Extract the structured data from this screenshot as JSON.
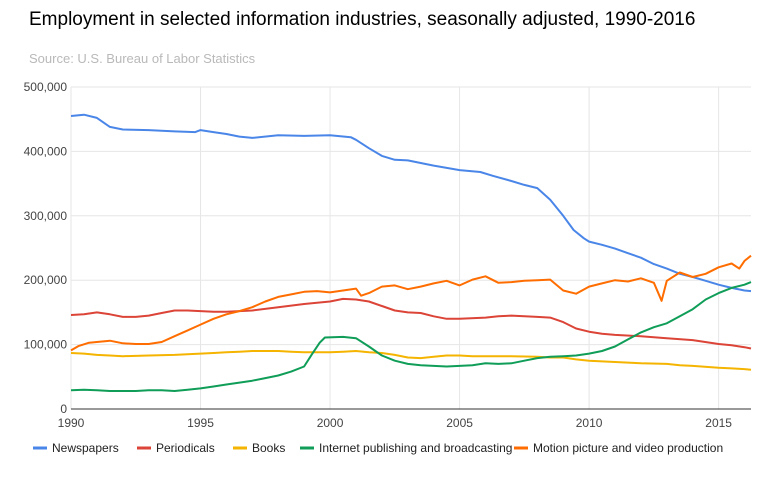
{
  "title": "Employment in selected information industries, seasonally adjusted, 1990-2016",
  "source": "Source: U.S. Bureau of Labor Statistics",
  "chart_data": {
    "type": "line",
    "title": "Employment in selected information industries, seasonally adjusted, 1990-2016",
    "subtitle": "Source: U.S. Bureau of Labor Statistics",
    "xlabel": "",
    "ylabel": "",
    "xlim": [
      1990,
      2016.25
    ],
    "ylim": [
      0,
      500000
    ],
    "x_ticks": [
      1990,
      1995,
      2000,
      2005,
      2010,
      2015
    ],
    "y_ticks": [
      0,
      100000,
      200000,
      300000,
      400000,
      500000
    ],
    "y_tick_labels": [
      "0",
      "100,000",
      "200,000",
      "300,000",
      "400,000",
      "500,000"
    ],
    "grid": true,
    "legend_position": "bottom",
    "series": [
      {
        "name": "Newspapers",
        "color": "#4a86e8",
        "points": [
          [
            1990,
            455000
          ],
          [
            1990.5,
            457000
          ],
          [
            1991,
            452000
          ],
          [
            1991.5,
            438000
          ],
          [
            1992,
            434000
          ],
          [
            1993,
            433000
          ],
          [
            1994,
            431000
          ],
          [
            1994.8,
            430000
          ],
          [
            1995,
            433000
          ],
          [
            1995.5,
            430000
          ],
          [
            1996,
            427000
          ],
          [
            1996.5,
            423000
          ],
          [
            1997,
            421000
          ],
          [
            1998,
            425000
          ],
          [
            1999,
            424000
          ],
          [
            2000,
            425000
          ],
          [
            2000.8,
            422000
          ],
          [
            2001,
            418000
          ],
          [
            2001.5,
            405000
          ],
          [
            2002,
            393000
          ],
          [
            2002.5,
            387000
          ],
          [
            2003,
            386000
          ],
          [
            2003.5,
            382000
          ],
          [
            2004,
            378000
          ],
          [
            2005,
            371000
          ],
          [
            2005.8,
            368000
          ],
          [
            2006.3,
            362000
          ],
          [
            2007,
            354000
          ],
          [
            2007.5,
            348000
          ],
          [
            2008,
            343000
          ],
          [
            2008.5,
            325000
          ],
          [
            2009,
            300000
          ],
          [
            2009.4,
            278000
          ],
          [
            2009.8,
            265000
          ],
          [
            2010,
            260000
          ],
          [
            2010.5,
            255000
          ],
          [
            2011,
            249000
          ],
          [
            2011.5,
            242000
          ],
          [
            2012,
            235000
          ],
          [
            2012.5,
            225000
          ],
          [
            2013,
            218000
          ],
          [
            2013.5,
            210000
          ],
          [
            2014,
            205000
          ],
          [
            2014.5,
            199000
          ],
          [
            2015,
            193000
          ],
          [
            2015.5,
            188000
          ],
          [
            2016,
            184000
          ],
          [
            2016.25,
            183000
          ]
        ]
      },
      {
        "name": "Periodicals",
        "color": "#db4437",
        "points": [
          [
            1990,
            146000
          ],
          [
            1990.5,
            147000
          ],
          [
            1991,
            150000
          ],
          [
            1991.5,
            147000
          ],
          [
            1992,
            143000
          ],
          [
            1992.5,
            143000
          ],
          [
            1993,
            145000
          ],
          [
            1993.5,
            149000
          ],
          [
            1994,
            153000
          ],
          [
            1994.5,
            153000
          ],
          [
            1995,
            152000
          ],
          [
            1995.5,
            151000
          ],
          [
            1996,
            151000
          ],
          [
            1997,
            153000
          ],
          [
            1998,
            158000
          ],
          [
            1999,
            163000
          ],
          [
            2000,
            167000
          ],
          [
            2000.5,
            171000
          ],
          [
            2001,
            170000
          ],
          [
            2001.5,
            167000
          ],
          [
            2002,
            160000
          ],
          [
            2002.5,
            153000
          ],
          [
            2003,
            150000
          ],
          [
            2003.5,
            149000
          ],
          [
            2004,
            144000
          ],
          [
            2004.5,
            140000
          ],
          [
            2005,
            140000
          ],
          [
            2006,
            142000
          ],
          [
            2006.5,
            144000
          ],
          [
            2007,
            145000
          ],
          [
            2008,
            143000
          ],
          [
            2008.5,
            142000
          ],
          [
            2009,
            135000
          ],
          [
            2009.5,
            125000
          ],
          [
            2010,
            120000
          ],
          [
            2010.5,
            117000
          ],
          [
            2011,
            115000
          ],
          [
            2012,
            113000
          ],
          [
            2013,
            110000
          ],
          [
            2014,
            107000
          ],
          [
            2015,
            101000
          ],
          [
            2015.5,
            99000
          ],
          [
            2016,
            96000
          ],
          [
            2016.25,
            94000
          ]
        ]
      },
      {
        "name": "Books",
        "color": "#f4b400",
        "points": [
          [
            1990,
            87000
          ],
          [
            1990.5,
            86000
          ],
          [
            1991,
            84000
          ],
          [
            1991.5,
            83000
          ],
          [
            1992,
            82000
          ],
          [
            1993,
            83000
          ],
          [
            1994,
            84000
          ],
          [
            1995,
            86000
          ],
          [
            1995.5,
            87000
          ],
          [
            1996,
            88000
          ],
          [
            1996.5,
            89000
          ],
          [
            1997,
            90000
          ],
          [
            1998,
            90000
          ],
          [
            1998.5,
            89000
          ],
          [
            1999,
            88000
          ],
          [
            2000,
            88000
          ],
          [
            2000.5,
            89000
          ],
          [
            2001,
            90000
          ],
          [
            2001.5,
            88000
          ],
          [
            2002,
            87000
          ],
          [
            2002.5,
            84000
          ],
          [
            2003,
            80000
          ],
          [
            2003.5,
            79000
          ],
          [
            2004,
            81000
          ],
          [
            2004.5,
            83000
          ],
          [
            2005,
            83000
          ],
          [
            2005.5,
            82000
          ],
          [
            2006,
            82000
          ],
          [
            2007,
            82000
          ],
          [
            2008,
            81000
          ],
          [
            2008.5,
            80000
          ],
          [
            2009,
            80000
          ],
          [
            2009.5,
            77000
          ],
          [
            2010,
            75000
          ],
          [
            2011,
            73000
          ],
          [
            2011.5,
            72000
          ],
          [
            2012,
            71000
          ],
          [
            2013,
            70000
          ],
          [
            2013.5,
            68000
          ],
          [
            2014,
            67000
          ],
          [
            2015,
            64000
          ],
          [
            2015.5,
            63000
          ],
          [
            2016,
            62000
          ],
          [
            2016.25,
            61000
          ]
        ]
      },
      {
        "name": "Internet publishing and broadcasting",
        "color": "#0f9d58",
        "points": [
          [
            1990,
            29000
          ],
          [
            1990.5,
            30000
          ],
          [
            1991,
            29000
          ],
          [
            1991.5,
            28000
          ],
          [
            1992,
            28000
          ],
          [
            1992.5,
            28000
          ],
          [
            1993,
            29000
          ],
          [
            1993.5,
            29000
          ],
          [
            1994,
            28000
          ],
          [
            1994.5,
            30000
          ],
          [
            1995,
            32000
          ],
          [
            1995.5,
            35000
          ],
          [
            1996,
            38000
          ],
          [
            1996.5,
            41000
          ],
          [
            1997,
            44000
          ],
          [
            1997.5,
            48000
          ],
          [
            1998,
            52000
          ],
          [
            1998.5,
            58000
          ],
          [
            1999,
            66000
          ],
          [
            1999.3,
            85000
          ],
          [
            1999.6,
            103000
          ],
          [
            1999.8,
            111000
          ],
          [
            2000.5,
            112000
          ],
          [
            2001,
            110000
          ],
          [
            2001.5,
            97000
          ],
          [
            2002,
            83000
          ],
          [
            2002.5,
            75000
          ],
          [
            2003,
            70000
          ],
          [
            2003.5,
            68000
          ],
          [
            2004,
            67000
          ],
          [
            2004.5,
            66000
          ],
          [
            2005,
            67000
          ],
          [
            2005.5,
            68000
          ],
          [
            2006,
            71000
          ],
          [
            2006.5,
            70000
          ],
          [
            2007,
            71000
          ],
          [
            2007.5,
            75000
          ],
          [
            2008,
            79000
          ],
          [
            2008.5,
            81000
          ],
          [
            2009,
            82000
          ],
          [
            2009.5,
            83000
          ],
          [
            2010,
            86000
          ],
          [
            2010.5,
            90000
          ],
          [
            2011,
            97000
          ],
          [
            2011.5,
            108000
          ],
          [
            2012,
            119000
          ],
          [
            2012.5,
            127000
          ],
          [
            2013,
            133000
          ],
          [
            2013.5,
            144000
          ],
          [
            2014,
            155000
          ],
          [
            2014.5,
            170000
          ],
          [
            2015,
            180000
          ],
          [
            2015.5,
            188000
          ],
          [
            2016,
            193000
          ],
          [
            2016.25,
            197000
          ]
        ]
      },
      {
        "name": "Motion picture and video production",
        "color": "#ff6d00",
        "points": [
          [
            1990,
            91000
          ],
          [
            1990.3,
            98000
          ],
          [
            1990.7,
            103000
          ],
          [
            1991,
            104000
          ],
          [
            1991.5,
            106000
          ],
          [
            1992,
            102000
          ],
          [
            1992.5,
            101000
          ],
          [
            1993,
            101000
          ],
          [
            1993.5,
            104000
          ],
          [
            1994,
            113000
          ],
          [
            1994.5,
            122000
          ],
          [
            1995,
            131000
          ],
          [
            1995.5,
            140000
          ],
          [
            1996,
            147000
          ],
          [
            1996.5,
            152000
          ],
          [
            1997,
            158000
          ],
          [
            1997.5,
            167000
          ],
          [
            1998,
            174000
          ],
          [
            1998.5,
            178000
          ],
          [
            1999,
            182000
          ],
          [
            1999.5,
            183000
          ],
          [
            2000,
            181000
          ],
          [
            2000.5,
            184000
          ],
          [
            2001,
            187000
          ],
          [
            2001.2,
            176000
          ],
          [
            2001.5,
            180000
          ],
          [
            2002,
            190000
          ],
          [
            2002.5,
            192000
          ],
          [
            2003,
            186000
          ],
          [
            2003.5,
            190000
          ],
          [
            2004,
            195000
          ],
          [
            2004.5,
            199000
          ],
          [
            2005,
            192000
          ],
          [
            2005.5,
            201000
          ],
          [
            2006,
            206000
          ],
          [
            2006.5,
            196000
          ],
          [
            2007,
            197000
          ],
          [
            2007.5,
            199000
          ],
          [
            2008,
            200000
          ],
          [
            2008.5,
            201000
          ],
          [
            2009,
            184000
          ],
          [
            2009.5,
            179000
          ],
          [
            2010,
            190000
          ],
          [
            2010.5,
            195000
          ],
          [
            2011,
            200000
          ],
          [
            2011.5,
            198000
          ],
          [
            2012,
            203000
          ],
          [
            2012.5,
            196000
          ],
          [
            2012.8,
            168000
          ],
          [
            2013,
            199000
          ],
          [
            2013.5,
            212000
          ],
          [
            2014,
            205000
          ],
          [
            2014.5,
            210000
          ],
          [
            2015,
            220000
          ],
          [
            2015.5,
            226000
          ],
          [
            2015.8,
            218000
          ],
          [
            2016,
            230000
          ],
          [
            2016.25,
            238000
          ]
        ]
      }
    ]
  }
}
